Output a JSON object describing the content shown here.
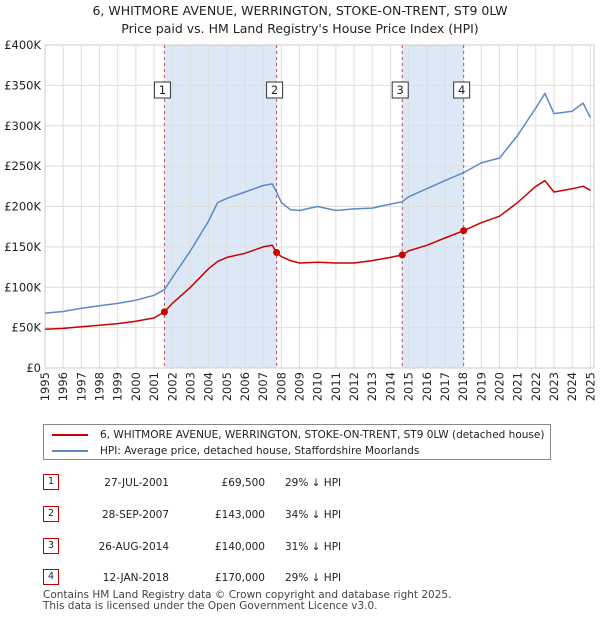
{
  "title": {
    "line1": "6, WHITMORE AVENUE, WERRINGTON, STOKE-ON-TRENT, ST9 0LW",
    "line2": "Price paid vs. HM Land Registry's House Price Index (HPI)"
  },
  "colors": {
    "property": "#cc0000",
    "hpi": "#5b8ac8",
    "shade": "#dde8f6",
    "vline": "#dd4444"
  },
  "chart_data": {
    "type": "line",
    "title": "Price paid vs. HM Land Registry's House Price Index (HPI)",
    "xlabel": "",
    "ylabel": "",
    "xlim": [
      1995,
      2025.2
    ],
    "ylim": [
      0,
      400000
    ],
    "y_ticks": [
      0,
      50000,
      100000,
      150000,
      200000,
      250000,
      300000,
      350000,
      400000
    ],
    "y_tick_labels": [
      "£0",
      "£50K",
      "£100K",
      "£150K",
      "£200K",
      "£250K",
      "£300K",
      "£350K",
      "£400K"
    ],
    "x_ticks": [
      1995,
      1996,
      1997,
      1998,
      1999,
      2000,
      2001,
      2002,
      2003,
      2004,
      2005,
      2006,
      2007,
      2008,
      2009,
      2010,
      2011,
      2012,
      2013,
      2014,
      2015,
      2016,
      2017,
      2018,
      2019,
      2020,
      2021,
      2022,
      2023,
      2024,
      2025
    ],
    "shaded_ranges": [
      [
        2001.57,
        2007.74
      ],
      [
        2014.65,
        2018.03
      ]
    ],
    "series": [
      {
        "name": "6, WHITMORE AVENUE, WERRINGTON, STOKE-ON-TRENT, ST9 0LW (detached house)",
        "x": [
          1995,
          1996,
          1997,
          1998,
          1999,
          2000,
          2001,
          2001.57,
          2002,
          2003,
          2004,
          2004.5,
          2005,
          2006,
          2007,
          2007.5,
          2007.74,
          2008,
          2008.5,
          2009,
          2010,
          2011,
          2012,
          2013,
          2014,
          2014.65,
          2015,
          2016,
          2017,
          2018.03,
          2019,
          2020,
          2021,
          2022,
          2022.5,
          2023,
          2024,
          2024.6,
          2025
        ],
        "values": [
          48000,
          49000,
          51000,
          53000,
          55000,
          58000,
          62000,
          69500,
          80000,
          100000,
          123000,
          132000,
          137000,
          142000,
          150000,
          152000,
          143000,
          138000,
          133000,
          130000,
          131000,
          130000,
          130000,
          133000,
          137000,
          140000,
          145000,
          152000,
          161000,
          170000,
          180000,
          188000,
          205000,
          225000,
          232000,
          218000,
          222000,
          225000,
          220000
        ]
      },
      {
        "name": "HPI: Average price, detached house, Staffordshire Moorlands",
        "x": [
          1995,
          1996,
          1997,
          1998,
          1999,
          2000,
          2001,
          2001.57,
          2002,
          2003,
          2004,
          2004.5,
          2005,
          2006,
          2007,
          2007.5,
          2007.74,
          2008,
          2008.5,
          2009,
          2010,
          2011,
          2012,
          2013,
          2014,
          2014.65,
          2015,
          2016,
          2017,
          2018.03,
          2019,
          2020,
          2021,
          2022,
          2022.5,
          2023,
          2024,
          2024.6,
          2025
        ],
        "values": [
          68000,
          70000,
          74000,
          77000,
          80000,
          84000,
          90000,
          97000,
          112000,
          145000,
          182000,
          205000,
          210000,
          218000,
          226000,
          228000,
          218000,
          205000,
          196000,
          195000,
          200000,
          195000,
          197000,
          198000,
          203000,
          206000,
          212000,
          222000,
          232000,
          242000,
          254000,
          260000,
          288000,
          322000,
          340000,
          315000,
          318000,
          328000,
          310000
        ]
      }
    ],
    "sales": [
      {
        "id": "1",
        "x": 2001.57,
        "price": 69500
      },
      {
        "id": "2",
        "x": 2007.74,
        "price": 143000
      },
      {
        "id": "3",
        "x": 2014.65,
        "price": 140000
      },
      {
        "id": "4",
        "x": 2018.03,
        "price": 170000
      }
    ]
  },
  "legend": {
    "property_label": "6, WHITMORE AVENUE, WERRINGTON, STOKE-ON-TRENT, ST9 0LW (detached house)",
    "hpi_label": "HPI: Average price, detached house, Staffordshire Moorlands"
  },
  "sales_table": [
    {
      "id": "1",
      "date": "27-JUL-2001",
      "price": "£69,500",
      "diff": "29% ↓ HPI"
    },
    {
      "id": "2",
      "date": "28-SEP-2007",
      "price": "£143,000",
      "diff": "34% ↓ HPI"
    },
    {
      "id": "3",
      "date": "26-AUG-2014",
      "price": "£140,000",
      "diff": "31% ↓ HPI"
    },
    {
      "id": "4",
      "date": "12-JAN-2018",
      "price": "£170,000",
      "diff": "29% ↓ HPI"
    }
  ],
  "footer": {
    "line1": "Contains HM Land Registry data © Crown copyright and database right 2025.",
    "line2": "This data is licensed under the Open Government Licence v3.0."
  }
}
